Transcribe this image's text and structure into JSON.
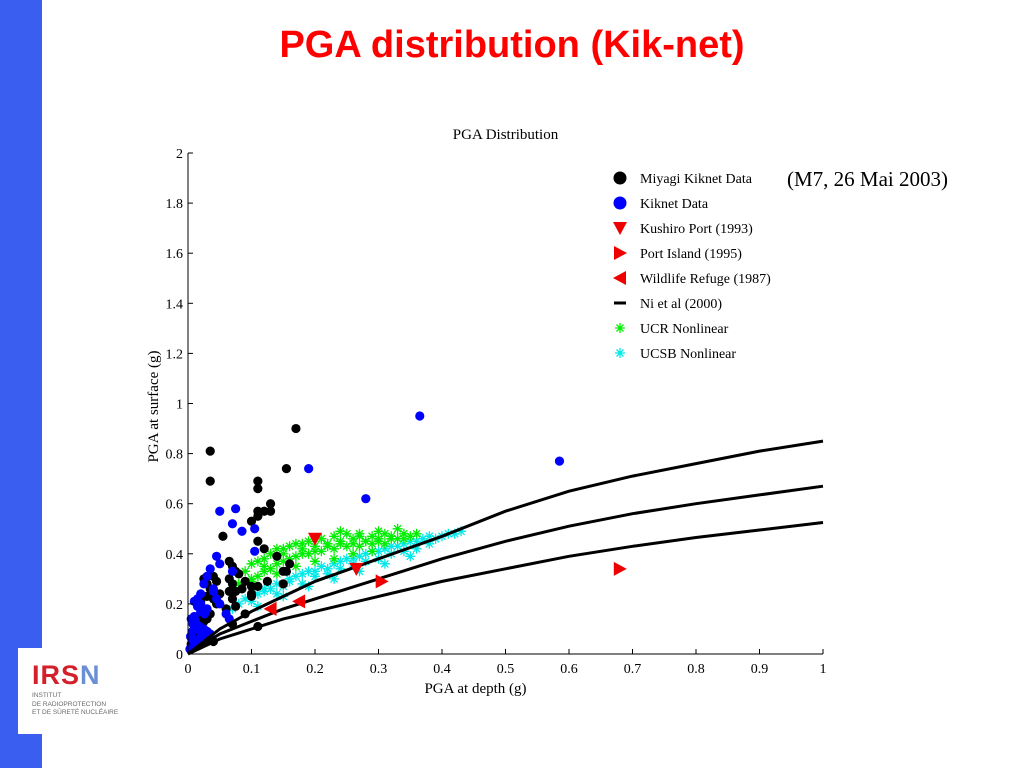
{
  "slide": {
    "title": "PGA distribution (Kik-net)",
    "annotation": "(M7, 26 Mai 2003)"
  },
  "logo": {
    "letters": [
      "I",
      "R",
      "S",
      "N"
    ],
    "subtitle_lines": [
      "INSTITUT",
      "DE RADIOPROTECTION",
      "ET DE SÛRETÉ NUCLÉAIRE"
    ]
  },
  "colors": {
    "title": "#ff0000",
    "sidebar": "#3a5ff0",
    "logo_red": "#d4202a",
    "logo_blue": "#6b8fd4"
  },
  "chart_data": {
    "type": "scatter",
    "title": "PGA Distribution",
    "xlabel": "PGA at depth (g)",
    "ylabel": "PGA at surface (g)",
    "xlim": [
      0,
      1
    ],
    "ylim": [
      0,
      2
    ],
    "xticks": [
      0,
      0.1,
      0.2,
      0.3,
      0.4,
      0.5,
      0.6,
      0.7,
      0.8,
      0.9,
      1
    ],
    "xtick_labels": [
      "0",
      "0.1",
      "0.2",
      "0.3",
      "0.4",
      "0.5",
      "0.6",
      "0.7",
      "0.8",
      "0.9",
      "1"
    ],
    "yticks": [
      0,
      0.2,
      0.4,
      0.6,
      0.8,
      1,
      1.2,
      1.4,
      1.6,
      1.8,
      2
    ],
    "ytick_labels": [
      "0",
      "0.2",
      "0.4",
      "0.6",
      "0.8",
      "1",
      "1.2",
      "1.4",
      "1.6",
      "1.8",
      "2"
    ],
    "grid": false,
    "legend_position": "top-right",
    "series": [
      {
        "name": "Miyagi Kiknet Data",
        "marker": "circle",
        "color": "#000000",
        "x": [
          0.035,
          0.035,
          0.17,
          0.11,
          0.155,
          0.11,
          0.13,
          0.11,
          0.12,
          0.11,
          0.1,
          0.13,
          0.11,
          0.12,
          0.065,
          0.07,
          0.075,
          0.08,
          0.065,
          0.07,
          0.09,
          0.1,
          0.085,
          0.075,
          0.14,
          0.16,
          0.155,
          0.125,
          0.15,
          0.15,
          0.11,
          0.1,
          0.1,
          0.065,
          0.07,
          0.04,
          0.045,
          0.03,
          0.025,
          0.035,
          0.05,
          0.04,
          0.045,
          0.03,
          0.02,
          0.015,
          0.025,
          0.035,
          0.02,
          0.03,
          0.025,
          0.015,
          0.02,
          0.01,
          0.015,
          0.01,
          0.018,
          0.028,
          0.04,
          0.008,
          0.005,
          0.012,
          0.022,
          0.03,
          0.07,
          0.11,
          0.075,
          0.09,
          0.06,
          0.055
        ],
        "y": [
          0.81,
          0.69,
          0.9,
          0.69,
          0.74,
          0.66,
          0.6,
          0.57,
          0.57,
          0.55,
          0.53,
          0.57,
          0.45,
          0.42,
          0.37,
          0.35,
          0.33,
          0.32,
          0.3,
          0.28,
          0.29,
          0.27,
          0.26,
          0.25,
          0.39,
          0.36,
          0.33,
          0.29,
          0.28,
          0.33,
          0.27,
          0.24,
          0.23,
          0.25,
          0.22,
          0.31,
          0.29,
          0.28,
          0.3,
          0.26,
          0.24,
          0.22,
          0.2,
          0.23,
          0.21,
          0.2,
          0.18,
          0.16,
          0.15,
          0.14,
          0.13,
          0.12,
          0.11,
          0.1,
          0.09,
          0.08,
          0.07,
          0.06,
          0.05,
          0.06,
          0.04,
          0.05,
          0.1,
          0.09,
          0.12,
          0.11,
          0.19,
          0.16,
          0.18,
          0.47
        ]
      },
      {
        "name": "Kiknet Data",
        "marker": "circle",
        "color": "#0000ff",
        "x": [
          0.365,
          0.585,
          0.28,
          0.19,
          0.05,
          0.075,
          0.105,
          0.085,
          0.07,
          0.045,
          0.05,
          0.035,
          0.03,
          0.025,
          0.04,
          0.02,
          0.015,
          0.02,
          0.03,
          0.01,
          0.015,
          0.02,
          0.01,
          0.005,
          0.008,
          0.012,
          0.018,
          0.025,
          0.03,
          0.035,
          0.004,
          0.006,
          0.01,
          0.014,
          0.022,
          0.028,
          0.009,
          0.003,
          0.012,
          0.02,
          0.026,
          0.016,
          0.007,
          0.04,
          0.045,
          0.05,
          0.06,
          0.065,
          0.07,
          0.105
        ],
        "y": [
          0.95,
          0.77,
          0.62,
          0.74,
          0.57,
          0.58,
          0.5,
          0.49,
          0.52,
          0.39,
          0.36,
          0.34,
          0.31,
          0.28,
          0.26,
          0.24,
          0.22,
          0.2,
          0.18,
          0.21,
          0.19,
          0.17,
          0.15,
          0.14,
          0.12,
          0.13,
          0.11,
          0.1,
          0.09,
          0.08,
          0.07,
          0.06,
          0.05,
          0.04,
          0.05,
          0.06,
          0.03,
          0.02,
          0.03,
          0.07,
          0.16,
          0.1,
          0.09,
          0.25,
          0.22,
          0.2,
          0.16,
          0.14,
          0.33,
          0.41
        ]
      },
      {
        "name": "Kushiro Port (1993)",
        "marker": "triangle-down",
        "color": "#ee0000",
        "x": [
          0.2,
          0.265
        ],
        "y": [
          0.46,
          0.34
        ]
      },
      {
        "name": "Port Island (1995)",
        "marker": "triangle-right",
        "color": "#ee0000",
        "x": [
          0.305,
          0.68
        ],
        "y": [
          0.29,
          0.34
        ]
      },
      {
        "name": "Wildlife Refuge (1987)",
        "marker": "triangle-left",
        "color": "#ee0000",
        "x": [
          0.13,
          0.175
        ],
        "y": [
          0.18,
          0.21
        ]
      },
      {
        "name": "Ni et al (2000)",
        "marker": "line",
        "color": "#000000",
        "lines": [
          {
            "x": [
              0,
              0.05,
              0.1,
              0.15,
              0.2,
              0.3,
              0.4,
              0.5,
              0.6,
              0.7,
              0.8,
              0.9,
              1.0
            ],
            "y": [
              0,
              0.1,
              0.17,
              0.23,
              0.29,
              0.38,
              0.47,
              0.57,
              0.65,
              0.71,
              0.76,
              0.81,
              0.85
            ]
          },
          {
            "x": [
              0,
              0.05,
              0.1,
              0.15,
              0.2,
              0.3,
              0.4,
              0.5,
              0.6,
              0.7,
              0.8,
              0.9,
              1.0
            ],
            "y": [
              0,
              0.08,
              0.13,
              0.18,
              0.22,
              0.3,
              0.38,
              0.45,
              0.51,
              0.56,
              0.6,
              0.635,
              0.67
            ]
          },
          {
            "x": [
              0,
              0.05,
              0.1,
              0.15,
              0.2,
              0.3,
              0.4,
              0.5,
              0.6,
              0.7,
              0.8,
              0.9,
              1.0
            ],
            "y": [
              0,
              0.06,
              0.1,
              0.14,
              0.17,
              0.23,
              0.29,
              0.34,
              0.39,
              0.43,
              0.465,
              0.495,
              0.525
            ]
          }
        ]
      },
      {
        "name": "UCR Nonlinear",
        "marker": "asterisk",
        "color": "#00ee00",
        "x": [
          0.09,
          0.1,
          0.11,
          0.12,
          0.13,
          0.14,
          0.15,
          0.16,
          0.17,
          0.18,
          0.19,
          0.2,
          0.21,
          0.22,
          0.23,
          0.24,
          0.25,
          0.26,
          0.27,
          0.28,
          0.29,
          0.3,
          0.31,
          0.32,
          0.33,
          0.34,
          0.35,
          0.11,
          0.13,
          0.15,
          0.17,
          0.19,
          0.21,
          0.23,
          0.25,
          0.27,
          0.29,
          0.31,
          0.1,
          0.12,
          0.14,
          0.16,
          0.18,
          0.2,
          0.22,
          0.24,
          0.26,
          0.28,
          0.3,
          0.32,
          0.34,
          0.36,
          0.12,
          0.15,
          0.18,
          0.21,
          0.24,
          0.27,
          0.3,
          0.33,
          0.08,
          0.1,
          0.14,
          0.17,
          0.2,
          0.23,
          0.26,
          0.29
        ],
        "y": [
          0.33,
          0.36,
          0.37,
          0.35,
          0.4,
          0.42,
          0.4,
          0.43,
          0.44,
          0.42,
          0.45,
          0.43,
          0.46,
          0.44,
          0.47,
          0.45,
          0.48,
          0.46,
          0.47,
          0.45,
          0.47,
          0.46,
          0.48,
          0.47,
          0.46,
          0.48,
          0.47,
          0.31,
          0.34,
          0.37,
          0.39,
          0.4,
          0.41,
          0.42,
          0.43,
          0.43,
          0.44,
          0.44,
          0.29,
          0.33,
          0.36,
          0.38,
          0.4,
          0.41,
          0.43,
          0.44,
          0.44,
          0.45,
          0.45,
          0.46,
          0.46,
          0.48,
          0.38,
          0.42,
          0.44,
          0.46,
          0.49,
          0.48,
          0.49,
          0.5,
          0.28,
          0.3,
          0.32,
          0.35,
          0.37,
          0.38,
          0.4,
          0.41
        ]
      },
      {
        "name": "UCSB Nonlinear",
        "marker": "asterisk",
        "color": "#00e8e8",
        "x": [
          0.09,
          0.1,
          0.11,
          0.12,
          0.13,
          0.14,
          0.15,
          0.16,
          0.17,
          0.18,
          0.19,
          0.2,
          0.21,
          0.22,
          0.23,
          0.24,
          0.25,
          0.26,
          0.27,
          0.28,
          0.29,
          0.3,
          0.31,
          0.32,
          0.33,
          0.34,
          0.35,
          0.36,
          0.37,
          0.38,
          0.39,
          0.4,
          0.41,
          0.42,
          0.43,
          0.08,
          0.12,
          0.16,
          0.2,
          0.24,
          0.28,
          0.32,
          0.36,
          0.1,
          0.14,
          0.18,
          0.22,
          0.26,
          0.3,
          0.34,
          0.38,
          0.07,
          0.11,
          0.15,
          0.19,
          0.23,
          0.27,
          0.31,
          0.35
        ],
        "y": [
          0.22,
          0.23,
          0.24,
          0.25,
          0.26,
          0.28,
          0.27,
          0.3,
          0.31,
          0.32,
          0.33,
          0.33,
          0.35,
          0.34,
          0.36,
          0.37,
          0.38,
          0.38,
          0.39,
          0.4,
          0.41,
          0.41,
          0.42,
          0.43,
          0.43,
          0.44,
          0.45,
          0.45,
          0.46,
          0.47,
          0.46,
          0.47,
          0.48,
          0.48,
          0.49,
          0.2,
          0.26,
          0.29,
          0.31,
          0.34,
          0.37,
          0.4,
          0.42,
          0.21,
          0.24,
          0.28,
          0.32,
          0.36,
          0.38,
          0.41,
          0.44,
          0.18,
          0.19,
          0.23,
          0.27,
          0.3,
          0.33,
          0.36,
          0.39
        ]
      }
    ]
  }
}
